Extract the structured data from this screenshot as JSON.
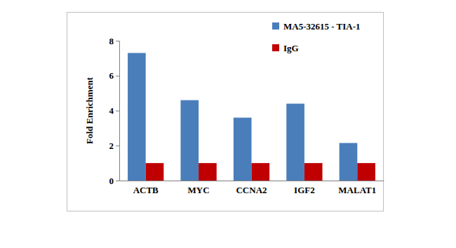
{
  "chart_data": {
    "type": "bar",
    "categories": [
      "ACTB",
      "MYC",
      "CCNA2",
      "IGF2",
      "MALAT1"
    ],
    "series": [
      {
        "name": "MA5-32615 - TIA-1",
        "color": "#4a7ebb",
        "values": [
          7.3,
          4.6,
          3.6,
          4.4,
          2.15
        ]
      },
      {
        "name": "IgG",
        "color": "#c00000",
        "values": [
          1,
          1,
          1,
          1,
          1
        ]
      }
    ],
    "ylabel": "Fold Enrichment",
    "ylim": [
      0,
      8
    ],
    "yticks": [
      0,
      2,
      4,
      6,
      8
    ],
    "grid": false,
    "legend": "upper right"
  }
}
